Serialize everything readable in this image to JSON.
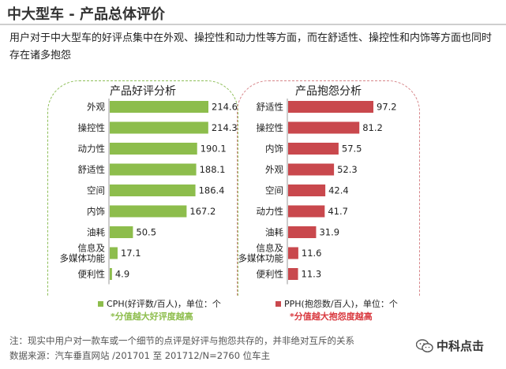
{
  "header": {
    "title": "中大型车 - 产品总体评价",
    "subtitle": "用户对于中大型车的好评点集中在外观、操控性和动力性等方面，而在舒适性、操控性和内饰等方面也同时存在诸多抱怨"
  },
  "colors": {
    "good": "#8dbd4c",
    "bad": "#c9484d",
    "good_note": "#8dbd4c",
    "bad_note": "#d9393f"
  },
  "chart_data": [
    {
      "type": "bar",
      "orientation": "horizontal",
      "title": "产品好评分析",
      "categories": [
        "外观",
        "操控性",
        "动力性",
        "舒适性",
        "空间",
        "内饰",
        "油耗",
        "信息及\n多媒体功能",
        "便利性"
      ],
      "series": [
        {
          "name": "CPH(好评数/百人)，单位：个",
          "values": [
            214.6,
            214.3,
            190.1,
            188.1,
            186.4,
            167.2,
            50.5,
            17.1,
            4.9
          ]
        }
      ],
      "legend": "CPH(好评数/百人)，单位：个",
      "note": "*分值越大好评度越高",
      "xlim": [
        0,
        214.6
      ]
    },
    {
      "type": "bar",
      "orientation": "horizontal",
      "title": "产品抱怨分析",
      "categories": [
        "舒适性",
        "操控性",
        "内饰",
        "外观",
        "空间",
        "动力性",
        "油耗",
        "信息及\n多媒体功能",
        "便利性"
      ],
      "series": [
        {
          "name": "PPH(抱怨数/百人)，单位：个",
          "values": [
            97.2,
            81.2,
            57.5,
            52.3,
            42.4,
            41.7,
            31.9,
            11.6,
            11.3
          ]
        }
      ],
      "legend": "PPH(抱怨数/百人)，单位：个",
      "note": "*分值越大抱怨度越高",
      "xlim": [
        0,
        97.2
      ]
    }
  ],
  "footer": {
    "note_line": "注：现实中用户对一款车或一个细节的点评是好评与抱怨共存的，并非绝对互斥的关系",
    "source_line": "数据来源：汽车垂直网站 /201701 至 201712/N=2760 位车主"
  },
  "logo": {
    "text": "中科点击",
    "icon": "wechat-icon"
  }
}
